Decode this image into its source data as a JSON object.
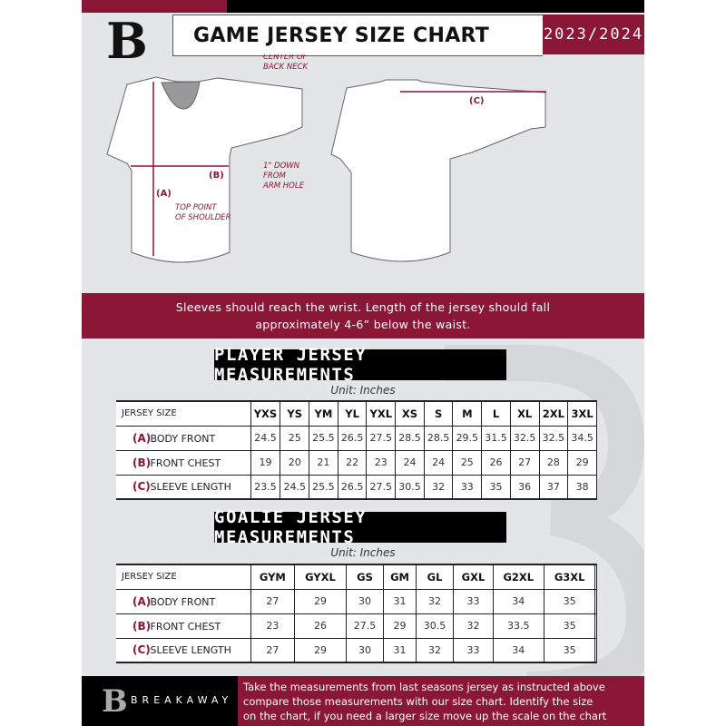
{
  "header": {
    "title": "GAME JERSEY SIZE CHART",
    "season": "2023/2024",
    "logo_letter": "B"
  },
  "diagram": {
    "center_back_neck": [
      "CENTER OF",
      "BACK NECK"
    ],
    "label_a": "(A)",
    "label_b": "(B)",
    "label_c": "(C)",
    "down_arm_hole": [
      "1\" DOWN",
      "FROM",
      "ARM HOLE"
    ],
    "top_shoulder": [
      "TOP POINT",
      "OF SHOULDER"
    ]
  },
  "instructions": [
    "Sleeves should reach the wrist. Length of the jersey should fall",
    "approximately 4-6” below the waist."
  ],
  "player": {
    "title": "PLAYER JERSEY MEASUREMENTS",
    "unit": "Unit: Inches",
    "header_label": "JERSEY SIZE",
    "sizes": [
      "YXS",
      "YS",
      "YM",
      "YL",
      "YXL",
      "XS",
      "S",
      "M",
      "L",
      "XL",
      "2XL",
      "3XL"
    ],
    "rows": [
      {
        "letter": "(A)",
        "label": "BODY FRONT",
        "values": [
          "24.5",
          "25",
          "25.5",
          "26.5",
          "27.5",
          "28.5",
          "28.5",
          "29.5",
          "31.5",
          "32.5",
          "32.5",
          "34.5"
        ]
      },
      {
        "letter": "(B)",
        "label": "FRONT CHEST",
        "values": [
          "19",
          "20",
          "21",
          "22",
          "23",
          "24",
          "24",
          "25",
          "26",
          "27",
          "28",
          "29"
        ]
      },
      {
        "letter": "(C)",
        "label": "SLEEVE LENGTH",
        "values": [
          "23.5",
          "24.5",
          "25.5",
          "26.5",
          "27.5",
          "30.5",
          "32",
          "33",
          "35",
          "36",
          "37",
          "38"
        ]
      }
    ]
  },
  "goalie": {
    "title": "GOALIE JERSEY MEASUREMENTS",
    "unit": "Unit: Inches",
    "header_label": "JERSEY SIZE",
    "sizes": [
      "GYM",
      "GYXL",
      "GS",
      "GM",
      "GL",
      "GXL",
      "G2XL",
      "G3XL",
      ""
    ],
    "rows": [
      {
        "letter": "(A)",
        "label": "BODY FRONT",
        "values": [
          "27",
          "29",
          "30",
          "31",
          "32",
          "33",
          "34",
          "35",
          ""
        ]
      },
      {
        "letter": "(B)",
        "label": "FRONT CHEST",
        "values": [
          "23",
          "26",
          "27.5",
          "29",
          "30.5",
          "32",
          "33.5",
          "35",
          ""
        ]
      },
      {
        "letter": "(C)",
        "label": "SLEEVE LENGTH",
        "values": [
          "27",
          "29",
          "30",
          "31",
          "32",
          "33",
          "34",
          "35",
          ""
        ]
      }
    ]
  },
  "footer": {
    "brand": "BREAKAWAY",
    "text": [
      "Take the measurements from last seasons jersey as instructed above",
      "compare those measurements  with our size chart. Identify the size",
      "on the chart, if you need a larger size move up the scale on the chart"
    ]
  },
  "colors": {
    "accent": "#8b1737",
    "background": "#e4e5e7",
    "dark": "#000000"
  }
}
